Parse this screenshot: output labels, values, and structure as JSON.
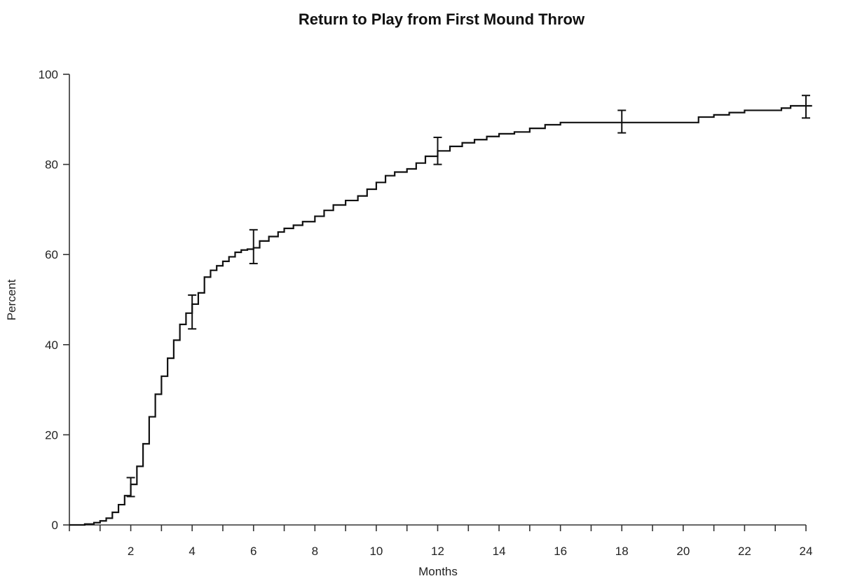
{
  "chart_data": {
    "type": "line",
    "title": "Return to Play from First Mound Throw",
    "xlabel": "Months",
    "ylabel": "Percent",
    "xlim": [
      0,
      24
    ],
    "ylim": [
      0,
      100
    ],
    "grid": false,
    "x_ticks": [
      2,
      4,
      6,
      8,
      10,
      12,
      14,
      16,
      18,
      20,
      22,
      24
    ],
    "x_minor_ticks": [
      0,
      1,
      2,
      3,
      4,
      5,
      6,
      7,
      8,
      9,
      10,
      11,
      12,
      13,
      14,
      15,
      16,
      17,
      18,
      19,
      20,
      21,
      22,
      23,
      24
    ],
    "y_ticks": [
      0,
      20,
      40,
      60,
      80,
      100
    ],
    "series": [
      {
        "step": true,
        "x": [
          0,
          0.5,
          0.8,
          1.0,
          1.2,
          1.4,
          1.6,
          1.8,
          2.0,
          2.2,
          2.4,
          2.6,
          2.8,
          3.0,
          3.2,
          3.4,
          3.6,
          3.8,
          4.0,
          4.2,
          4.4,
          4.6,
          4.8,
          5.0,
          5.2,
          5.4,
          5.6,
          5.8,
          6.0,
          6.2,
          6.5,
          6.8,
          7.0,
          7.3,
          7.6,
          8.0,
          8.3,
          8.6,
          9.0,
          9.4,
          9.7,
          10.0,
          10.3,
          10.6,
          11.0,
          11.3,
          11.6,
          12.0,
          12.4,
          12.8,
          13.2,
          13.6,
          14.0,
          14.5,
          15.0,
          15.5,
          16.0,
          17.0,
          18.0,
          19.0,
          20.0,
          20.5,
          21.0,
          21.5,
          22.0,
          23.0,
          23.2,
          23.5,
          24.0,
          24.2
        ],
        "values": [
          0,
          0.2,
          0.5,
          0.9,
          1.5,
          2.8,
          4.5,
          6.5,
          9.0,
          13.0,
          18.0,
          24.0,
          29.0,
          33.0,
          37.0,
          41.0,
          44.5,
          47.0,
          49.0,
          51.5,
          55.0,
          56.5,
          57.5,
          58.5,
          59.5,
          60.5,
          61.0,
          61.2,
          61.5,
          63.0,
          64.0,
          65.0,
          65.8,
          66.5,
          67.3,
          68.5,
          69.8,
          71.0,
          72.0,
          73.0,
          74.5,
          76.0,
          77.5,
          78.3,
          79.0,
          80.3,
          81.8,
          83.0,
          84.0,
          84.8,
          85.5,
          86.2,
          86.8,
          87.2,
          88.0,
          88.8,
          89.3,
          89.3,
          89.3,
          89.3,
          89.3,
          90.5,
          91.0,
          91.5,
          92.0,
          92.0,
          92.5,
          93.0,
          93.0,
          93.0
        ]
      }
    ],
    "error_bars": [
      {
        "x": 2,
        "y": 8.5,
        "low": 6.3,
        "high": 10.5
      },
      {
        "x": 4,
        "y": 47.5,
        "low": 43.5,
        "high": 51.0
      },
      {
        "x": 6,
        "y": 61.5,
        "low": 58.0,
        "high": 65.5
      },
      {
        "x": 12,
        "y": 83.0,
        "low": 80.0,
        "high": 86.0
      },
      {
        "x": 18,
        "y": 89.3,
        "low": 87.0,
        "high": 92.0
      },
      {
        "x": 24,
        "y": 93.0,
        "low": 90.3,
        "high": 95.3
      }
    ]
  }
}
